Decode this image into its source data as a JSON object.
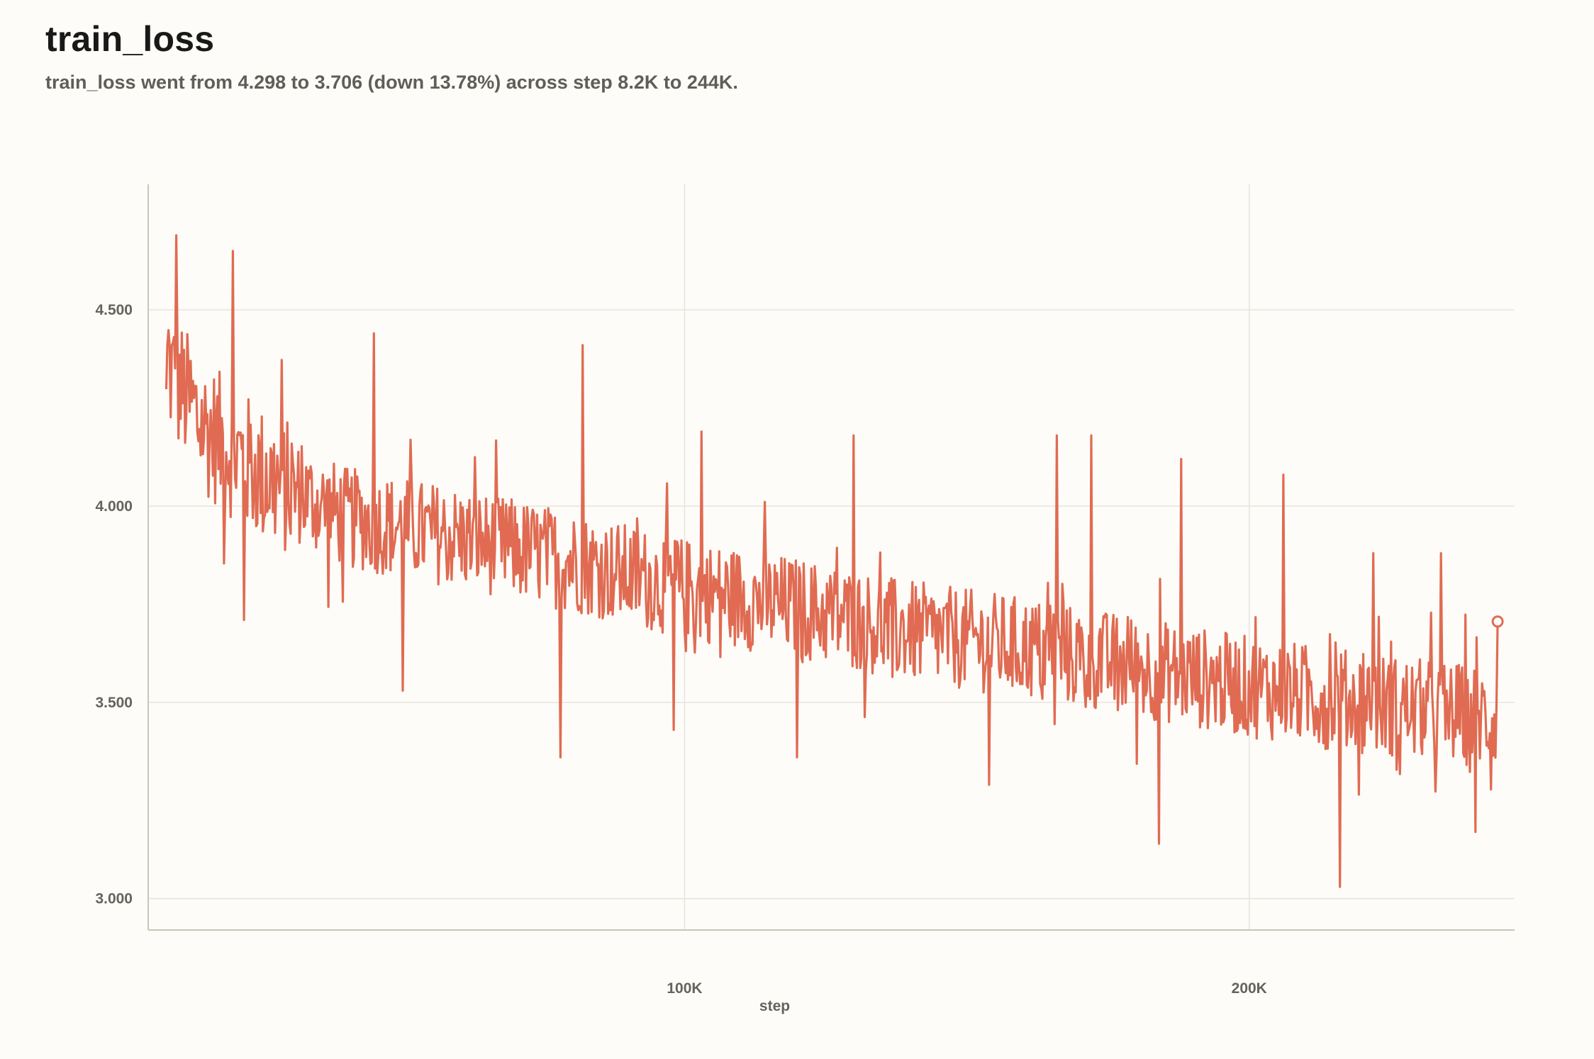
{
  "header": {
    "title": "train_loss",
    "subtitle": "train_loss went from 4.298 to 3.706 (down 13.78%) across step 8.2K to 244K."
  },
  "colors": {
    "series": "#e06b52",
    "grid": "#e6e4de",
    "axis": "#c9c6b8",
    "background": "#fdfcf8"
  },
  "chart_data": {
    "type": "line",
    "title": "train_loss",
    "xlabel": "step",
    "ylabel": "",
    "xlim": [
      5000,
      247000
    ],
    "ylim": [
      2.92,
      4.82
    ],
    "x_ticks": [
      {
        "value": 100000,
        "label": "100K"
      },
      {
        "value": 200000,
        "label": "200K"
      }
    ],
    "y_ticks": [
      {
        "value": 3.0,
        "label": "3.000"
      },
      {
        "value": 3.5,
        "label": "3.500"
      },
      {
        "value": 4.0,
        "label": "4.000"
      },
      {
        "value": 4.5,
        "label": "4.500"
      }
    ],
    "grid": true,
    "legend": "none",
    "series": [
      {
        "first_point": {
          "x": 8200,
          "y": 4.298
        },
        "last_point": {
          "x": 244000,
          "y": 3.706
        },
        "trend": [
          [
            8200,
            4.36
          ],
          [
            15000,
            4.2
          ],
          [
            25000,
            4.08
          ],
          [
            40000,
            3.97
          ],
          [
            60000,
            3.92
          ],
          [
            80000,
            3.86
          ],
          [
            100000,
            3.79
          ],
          [
            120000,
            3.74
          ],
          [
            140000,
            3.68
          ],
          [
            160000,
            3.64
          ],
          [
            180000,
            3.59
          ],
          [
            200000,
            3.54
          ],
          [
            220000,
            3.5
          ],
          [
            243500,
            3.46
          ]
        ],
        "spikes": [
          [
            10000,
            4.69
          ],
          [
            20000,
            4.65
          ],
          [
            22000,
            3.71
          ],
          [
            45000,
            4.44
          ],
          [
            50000,
            3.53
          ],
          [
            82000,
            4.41
          ],
          [
            78000,
            3.36
          ],
          [
            103000,
            4.19
          ],
          [
            98000,
            3.43
          ],
          [
            120000,
            3.36
          ],
          [
            130000,
            4.18
          ],
          [
            154000,
            3.29
          ],
          [
            166000,
            4.18
          ],
          [
            172000,
            4.18
          ],
          [
            188000,
            4.12
          ],
          [
            184000,
            3.14
          ],
          [
            206000,
            4.08
          ],
          [
            216000,
            3.03
          ],
          [
            222000,
            3.88
          ],
          [
            234000,
            3.88
          ],
          [
            240000,
            3.17
          ]
        ],
        "noise_amplitude": 0.13,
        "samples": 1200
      }
    ]
  }
}
